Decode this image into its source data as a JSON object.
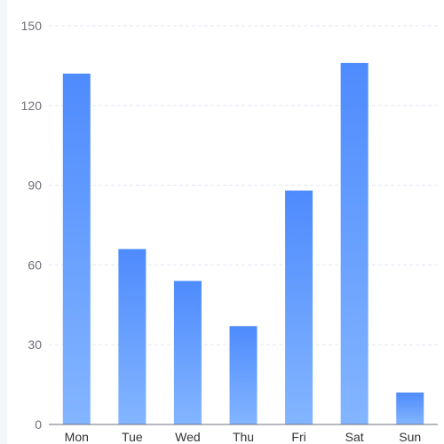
{
  "chart_data": {
    "type": "bar",
    "categories": [
      "Mon",
      "Tue",
      "Wed",
      "Thu",
      "Fri",
      "Sat",
      "Sun"
    ],
    "values": [
      132,
      66,
      54,
      37,
      88,
      136,
      12
    ],
    "ylim": [
      0,
      150
    ],
    "yticks": [
      0,
      30,
      60,
      90,
      120,
      150
    ],
    "grid": true,
    "colors": {
      "bar_top": "#4e8bfd",
      "bar_bottom": "#83b5ff",
      "grid": "#e0e6f1",
      "axis": "#6e7079"
    }
  }
}
